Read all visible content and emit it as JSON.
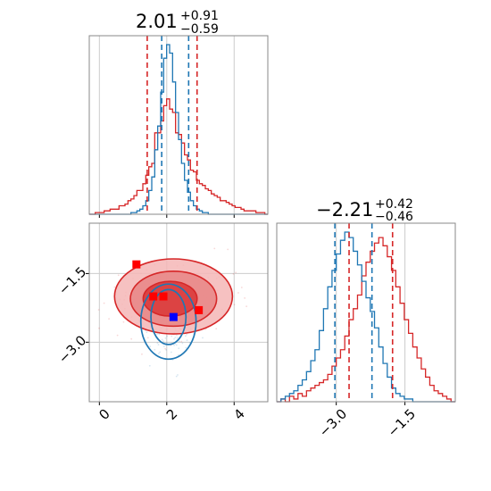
{
  "chart_data": {
    "type": "corner",
    "parameters": [
      {
        "title_value": "2.01",
        "title_plus": "+0.91",
        "title_minus": "−0.59"
      },
      {
        "title_value": "−2.21",
        "title_plus": "+0.42",
        "title_minus": "−0.46"
      }
    ],
    "axes": {
      "param1": {
        "range": [
          -0.3,
          5.0
        ],
        "ticks": [
          0,
          2,
          4
        ],
        "tick_labels": [
          "0",
          "2",
          "4"
        ]
      },
      "param2": {
        "range": [
          -4.3,
          -0.4
        ],
        "ticks": [
          -3.0,
          -1.5
        ],
        "tick_labels": [
          "−3.0",
          "−1.5"
        ]
      }
    },
    "grid": true,
    "series": [
      {
        "color": "#d62728",
        "param1_quantiles": [
          1.42,
          2.9
        ],
        "param2_quantiles": [
          -2.72,
          -1.77
        ],
        "hist1": {
          "edges": [
            -0.3,
            5.0
          ],
          "counts": [
            0,
            0,
            1,
            1,
            1,
            2,
            2,
            3,
            3,
            3,
            5,
            5,
            6,
            8,
            9,
            11,
            14,
            14,
            18,
            23,
            28,
            30,
            48,
            48,
            55,
            64,
            68,
            62,
            60,
            48,
            47,
            42,
            35,
            32,
            26,
            25,
            20,
            18,
            17,
            15,
            14,
            12,
            11,
            10,
            8,
            8,
            7,
            6,
            5,
            4,
            4,
            3,
            2,
            2,
            2,
            2,
            1,
            1,
            1,
            0
          ]
        },
        "hist2": {
          "edges": [
            -4.3,
            -0.4
          ],
          "counts": [
            0,
            1,
            0,
            2,
            1,
            3,
            2,
            4,
            5,
            6,
            7,
            8,
            10,
            13,
            16,
            19,
            24,
            30,
            34,
            39,
            46,
            51,
            55,
            58,
            60,
            57,
            53,
            48,
            42,
            36,
            30,
            25,
            20,
            16,
            12,
            9,
            6,
            4,
            3,
            2,
            1,
            0
          ]
        },
        "points": [
          [
            1.1,
            -1.3
          ],
          [
            1.6,
            -2.0
          ],
          [
            1.9,
            -2.0
          ],
          [
            2.95,
            -2.3
          ]
        ],
        "contours": [
          {
            "cx": 2.2,
            "cy": -2.0,
            "rx": 1.75,
            "ry": 0.82
          },
          {
            "cx": 2.2,
            "cy": -2.05,
            "rx": 1.28,
            "ry": 0.6
          },
          {
            "cx": 2.1,
            "cy": -2.05,
            "rx": 0.8,
            "ry": 0.38
          }
        ]
      },
      {
        "color": "#1f77b4",
        "param1_quantiles": [
          1.85,
          2.65
        ],
        "param2_quantiles": [
          -3.03,
          -2.22
        ],
        "hist1": {
          "edges": [
            -0.3,
            5.0
          ],
          "counts": [
            0,
            0,
            0,
            0,
            0,
            0,
            0,
            0,
            0,
            0,
            0,
            0,
            0,
            0,
            1,
            1,
            2,
            3,
            5,
            8,
            14,
            22,
            38,
            52,
            72,
            92,
            100,
            95,
            78,
            60,
            44,
            30,
            20,
            13,
            8,
            5,
            3,
            2,
            1,
            1,
            0,
            0,
            0,
            0,
            0,
            0,
            0,
            0,
            0,
            0,
            0,
            0,
            0,
            0,
            0,
            0,
            0,
            0,
            0,
            0
          ]
        },
        "hist2": {
          "edges": [
            -4.3,
            -0.4
          ],
          "counts": [
            0,
            1,
            2,
            3,
            4,
            6,
            8,
            11,
            15,
            19,
            26,
            34,
            42,
            48,
            54,
            59,
            62,
            60,
            55,
            50,
            44,
            38,
            33,
            27,
            20,
            14,
            9,
            5,
            3,
            2,
            1,
            1,
            0,
            0,
            0,
            0,
            0,
            0,
            0,
            0,
            0,
            0
          ]
        },
        "points": [
          [
            2.2,
            -2.45
          ]
        ],
        "contours": [
          {
            "cx": 2.05,
            "cy": -2.55,
            "rx": 0.82,
            "ry": 0.82
          },
          {
            "cx": 2.05,
            "cy": -2.45,
            "rx": 0.52,
            "ry": 0.6
          }
        ]
      }
    ]
  }
}
